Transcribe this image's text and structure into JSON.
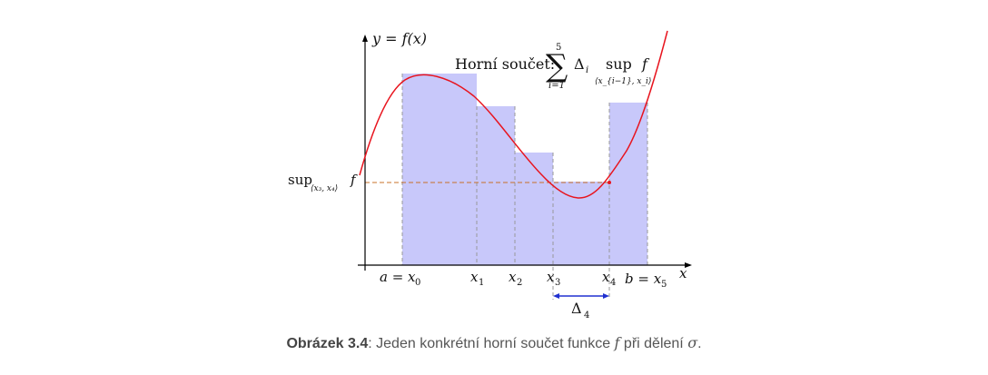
{
  "diagram": {
    "y_axis_label": "y = f(x)",
    "x_axis_label": "x",
    "formula_text": "Horní součet:",
    "sum_upper": "5",
    "sum_lower": "i=1",
    "delta_i": "Δ",
    "delta_i_sub": "i",
    "sup_text": "sup",
    "sup_sub": "⟨x_{i−1}, x_i⟩",
    "f_letter": "f",
    "side_label_sup": "sup",
    "side_label_sub": "⟨x₃, x₄⟩",
    "side_label_f": "f",
    "x_ticks": [
      {
        "main": "a = x",
        "sub": "0"
      },
      {
        "main": "x",
        "sub": "1"
      },
      {
        "main": "x",
        "sub": "2"
      },
      {
        "main": "x",
        "sub": "3"
      },
      {
        "main": "x",
        "sub": "4"
      },
      {
        "main": "b = x",
        "sub": "5"
      }
    ],
    "delta_label": "Δ",
    "delta_sub": "4",
    "colors": {
      "bars": "#c8c8fa",
      "curve": "#e8141e",
      "dashed": "#c87028",
      "arrow": "#2030d0"
    }
  },
  "caption": {
    "label": "Obrázek 3.4",
    "text": ": Jeden konkrétní horní součet funkce ",
    "f": "f",
    "text2": " při dělení ",
    "sigma": "σ",
    "text3": "."
  }
}
